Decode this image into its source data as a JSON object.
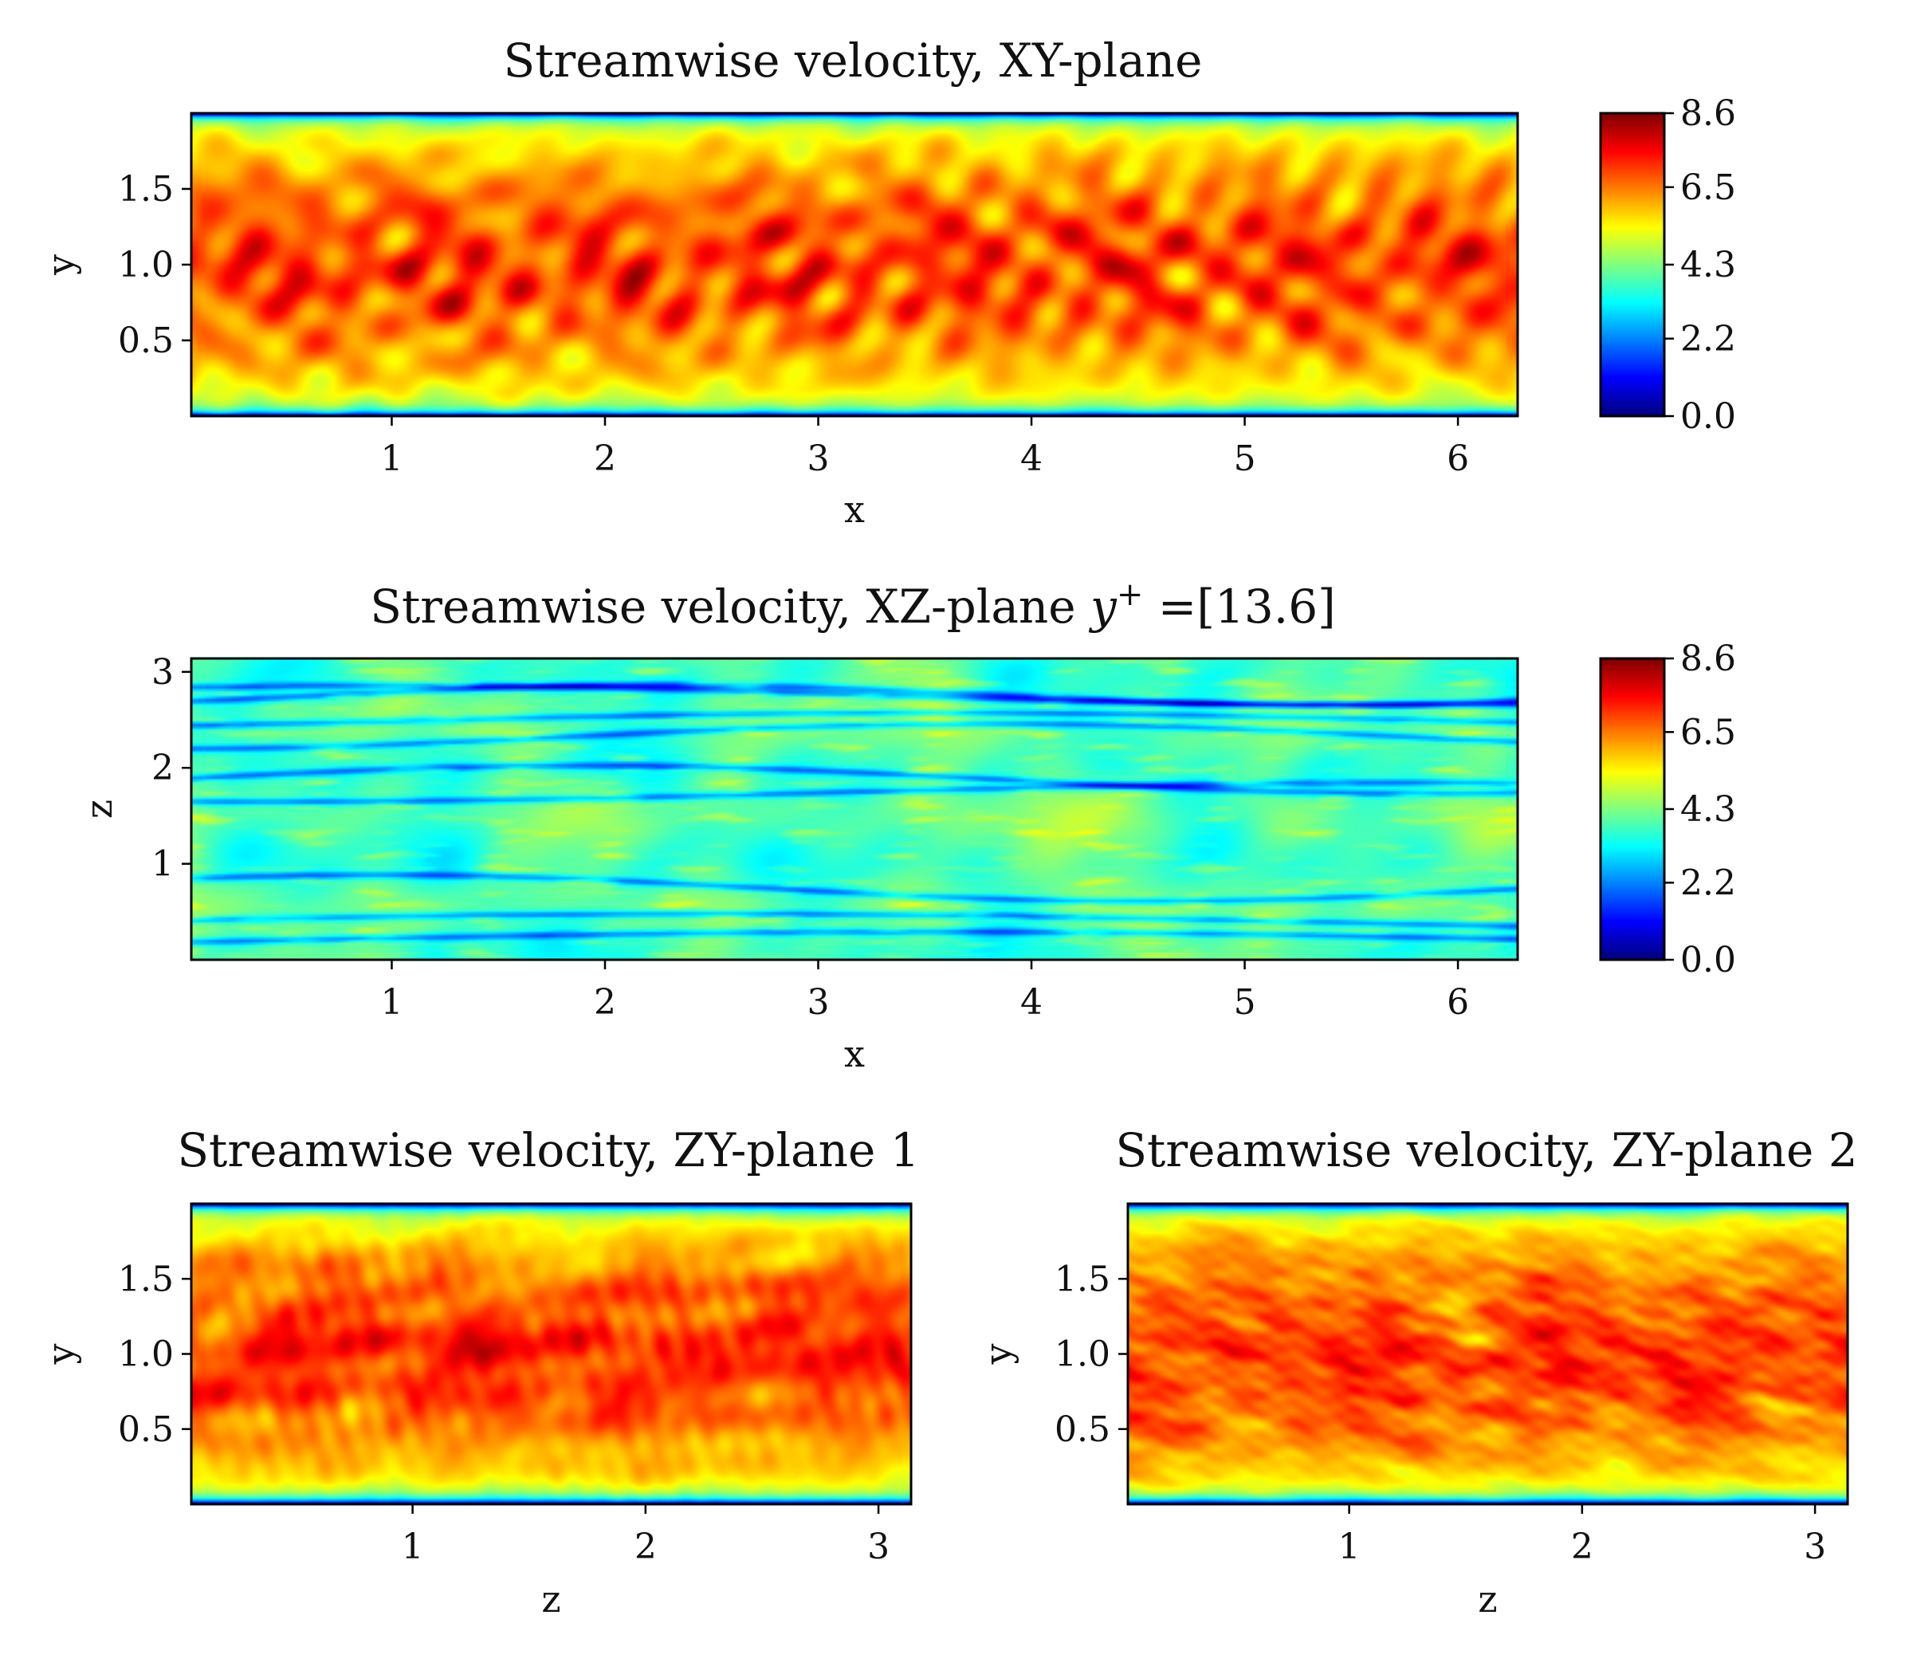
{
  "chart_data": [
    {
      "type": "heatmap",
      "title": "Streamwise velocity, XY-plane",
      "xlabel": "x",
      "ylabel": "y",
      "xlim": [
        0.06,
        6.28
      ],
      "ylim": [
        0.0,
        2.0
      ],
      "xticks": [
        1,
        2,
        3,
        4,
        5,
        6
      ],
      "xtick_labels": [
        "1",
        "2",
        "3",
        "4",
        "5",
        "6"
      ],
      "yticks": [
        0.5,
        1.0,
        1.5
      ],
      "ytick_labels": [
        "0.5",
        "1.0",
        "1.5"
      ],
      "field": "xy",
      "colorbar": {
        "colormap": "jet",
        "range": [
          0.0,
          8.6
        ],
        "ticks": [
          0.0,
          2.2,
          4.3,
          6.5,
          8.6
        ],
        "tick_labels": [
          "0.0",
          "2.2",
          "4.3",
          "6.5",
          "8.6"
        ]
      }
    },
    {
      "type": "heatmap",
      "title": "Streamwise velocity, XZ-plane ",
      "title_math": {
        "base": "y",
        "sup": "+"
      },
      "title_suffix": " =[13.6]",
      "xlabel": "x",
      "ylabel": "z",
      "xlim": [
        0.06,
        6.28
      ],
      "ylim": [
        0.0,
        3.14
      ],
      "xticks": [
        1,
        2,
        3,
        4,
        5,
        6
      ],
      "xtick_labels": [
        "1",
        "2",
        "3",
        "4",
        "5",
        "6"
      ],
      "yticks": [
        1,
        2,
        3
      ],
      "ytick_labels": [
        "1",
        "2",
        "3"
      ],
      "field": "xz",
      "colorbar": {
        "colormap": "jet",
        "range": [
          0.0,
          8.6
        ],
        "ticks": [
          0.0,
          2.2,
          4.3,
          6.5,
          8.6
        ],
        "tick_labels": [
          "0.0",
          "2.2",
          "4.3",
          "6.5",
          "8.6"
        ]
      }
    },
    {
      "type": "heatmap",
      "title": "Streamwise velocity, ZY-plane 1",
      "xlabel": "z",
      "ylabel": "y",
      "xlim": [
        0.05,
        3.14
      ],
      "ylim": [
        0.0,
        2.0
      ],
      "xticks": [
        1,
        2,
        3
      ],
      "xtick_labels": [
        "1",
        "2",
        "3"
      ],
      "yticks": [
        0.5,
        1.0,
        1.5
      ],
      "ytick_labels": [
        "0.5",
        "1.0",
        "1.5"
      ],
      "field": "zy",
      "seed": 3
    },
    {
      "type": "heatmap",
      "title": "Streamwise velocity, ZY-plane 2",
      "xlabel": "z",
      "ylabel": "y",
      "xlim": [
        0.05,
        3.14
      ],
      "ylim": [
        0.0,
        2.0
      ],
      "xticks": [
        1,
        2,
        3
      ],
      "xtick_labels": [
        "1",
        "2",
        "3"
      ],
      "yticks": [
        0.5,
        1.0,
        1.5
      ],
      "ytick_labels": [
        "0.5",
        "1.0",
        "1.5"
      ],
      "field": "zy",
      "seed": 7
    }
  ]
}
